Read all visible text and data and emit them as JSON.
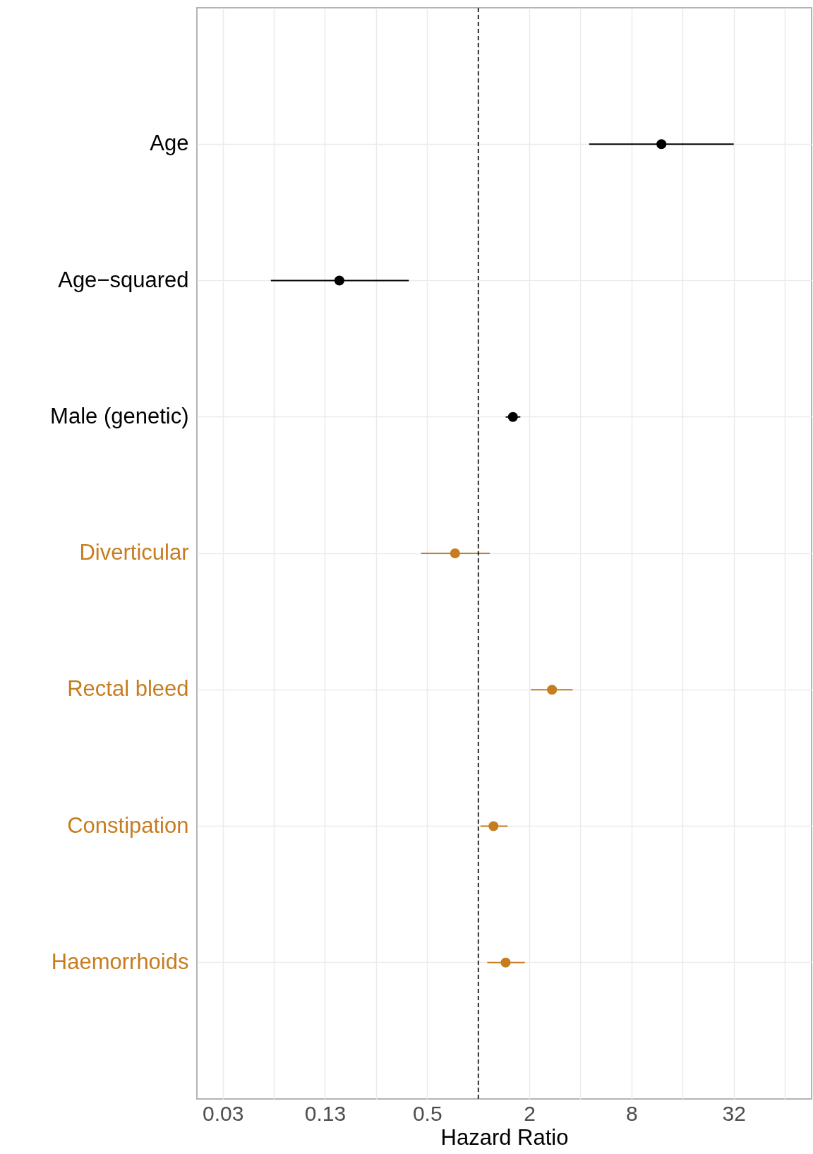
{
  "chart_data": {
    "type": "scatter",
    "orientation": "horizontal",
    "xlabel": "Hazard Ratio",
    "categories": [
      "Age",
      "Age−squared",
      "Male (genetic)",
      "Diverticular",
      "Rectal bleed",
      "Constipation",
      "Haemorrhoids"
    ],
    "values": [
      12.0,
      0.152,
      1.6,
      0.73,
      2.72,
      1.23,
      1.45
    ],
    "errors": [
      [
        4.5,
        32
      ],
      [
        0.06,
        0.39
      ],
      [
        1.45,
        1.77
      ],
      [
        0.46,
        1.17
      ],
      [
        2.04,
        3.6
      ],
      [
        1.03,
        1.49
      ],
      [
        1.13,
        1.88
      ]
    ],
    "colors": [
      "#000000",
      "#000000",
      "#000000",
      "#c77c1e",
      "#c77c1e",
      "#c77c1e",
      "#c77c1e"
    ],
    "log": "x",
    "xlim": [
      0.022,
      92
    ],
    "xticks": [
      {
        "value": 0.03125,
        "label": "0.03"
      },
      {
        "value": 0.0625,
        "label": null
      },
      {
        "value": 0.125,
        "label": "0.13"
      },
      {
        "value": 0.25,
        "label": null
      },
      0.5,
      {
        "value": 1,
        "label": null
      },
      2,
      {
        "value": 4,
        "label": null
      },
      8,
      {
        "value": 16,
        "label": null
      },
      32,
      {
        "value": 64,
        "label": null
      }
    ],
    "grid": true,
    "marker": "circle",
    "ref_lines": [
      {
        "axis": "x",
        "value": 1,
        "line_style": "dashed",
        "color": "#000000"
      }
    ]
  }
}
